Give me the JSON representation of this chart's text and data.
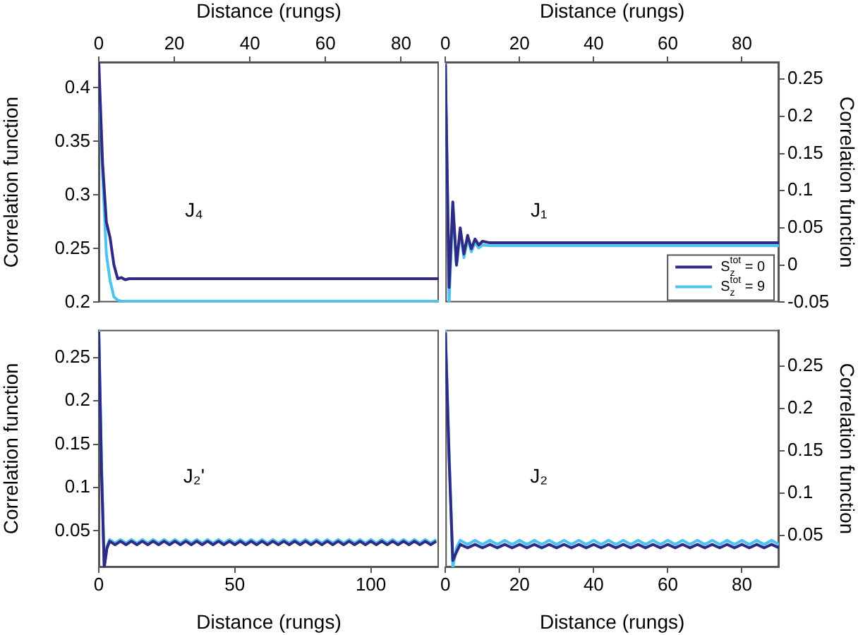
{
  "chart_data": [
    {
      "type": "line",
      "xlabel": "Distance (rungs)",
      "ylabel": "Correlation function",
      "xlim": [
        0,
        90
      ],
      "xticks": [
        0,
        20,
        40,
        60,
        80
      ],
      "ylim": [
        0.2,
        0.424
      ],
      "yticks": [
        0.2,
        0.25,
        0.3,
        0.35,
        0.4
      ],
      "annotations": [
        "J₄"
      ],
      "series": [
        {
          "color": "#2e2a85",
          "x": [
            0,
            1,
            2,
            3,
            4,
            5,
            6,
            7,
            8,
            10,
            30,
            50,
            70,
            90
          ],
          "values": [
            0.424,
            0.33,
            0.275,
            0.26,
            0.235,
            0.222,
            0.223,
            0.221,
            0.222,
            0.222,
            0.222,
            0.222,
            0.222,
            0.222
          ]
        },
        {
          "color": "#4fc3f0",
          "x": [
            0,
            1,
            2,
            3,
            4,
            5,
            6,
            7,
            8,
            10,
            30,
            50,
            70,
            90
          ],
          "values": [
            0.41,
            0.32,
            0.245,
            0.22,
            0.205,
            0.202,
            0.201,
            0.201,
            0.201,
            0.201,
            0.201,
            0.201,
            0.201,
            0.201
          ]
        }
      ]
    },
    {
      "type": "line",
      "xlabel": "Distance (rungs)",
      "y2label": "Correlation function",
      "xlim": [
        0,
        90
      ],
      "xticks": [
        0,
        20,
        40,
        60,
        80
      ],
      "y2lim": [
        -0.05,
        0.273
      ],
      "y2ticks": [
        -0.05,
        0,
        0.05,
        0.1,
        0.15,
        0.2,
        0.25
      ],
      "annotations": [
        "J₁"
      ],
      "legend": "bottom right",
      "series": [
        {
          "name": "S$_{z}$$^{tot}$ = 0",
          "color": "#2e2a85",
          "axis": "y2",
          "x": [
            0,
            1,
            2,
            3,
            4,
            5,
            6,
            7,
            8,
            9,
            10,
            12,
            15,
            30,
            50,
            70,
            90
          ],
          "values": [
            0.27,
            -0.03,
            0.085,
            0.0,
            0.05,
            0.015,
            0.04,
            0.022,
            0.035,
            0.027,
            0.032,
            0.03,
            0.03,
            0.03,
            0.03,
            0.03,
            0.03
          ]
        },
        {
          "name": "S$_{z}$$^{tot}$ = 9",
          "color": "#4fc3f0",
          "axis": "y2",
          "x": [
            0,
            1,
            2,
            3,
            4,
            5,
            6,
            7,
            8,
            9,
            10,
            12,
            15,
            30,
            50,
            70,
            90
          ],
          "values": [
            0.27,
            -0.05,
            0.075,
            0.0,
            0.045,
            0.01,
            0.035,
            0.018,
            0.03,
            0.023,
            0.027,
            0.026,
            0.026,
            0.026,
            0.026,
            0.026,
            0.026
          ]
        }
      ]
    },
    {
      "type": "line",
      "xlabel": "Distance (rungs)",
      "ylabel": "Correlation function",
      "xlim": [
        0,
        125
      ],
      "xticks": [
        0,
        50,
        100
      ],
      "ylim": [
        0.008,
        0.282
      ],
      "yticks": [
        0.05,
        0.1,
        0.15,
        0.2,
        0.25
      ],
      "annotations": [
        "J₂'"
      ],
      "series": [
        {
          "color": "#2e2a85",
          "x": [
            0,
            1,
            2,
            3,
            4,
            6,
            8,
            10,
            12,
            14,
            16,
            18,
            20,
            22,
            24,
            26,
            28,
            30,
            32,
            34,
            36,
            38,
            40,
            42,
            44,
            46,
            48,
            50,
            52,
            54,
            56,
            58,
            60,
            62,
            64,
            66,
            68,
            70,
            72,
            74,
            76,
            78,
            80,
            82,
            84,
            86,
            88,
            90,
            92,
            94,
            96,
            98,
            100,
            102,
            104,
            106,
            108,
            110,
            112,
            114,
            116,
            118,
            120,
            122,
            124
          ],
          "values": [
            0.28,
            0.12,
            0.008,
            0.03,
            0.038,
            0.034,
            0.038,
            0.034,
            0.038,
            0.034,
            0.038,
            0.034,
            0.038,
            0.034,
            0.038,
            0.034,
            0.038,
            0.034,
            0.038,
            0.034,
            0.038,
            0.034,
            0.038,
            0.034,
            0.038,
            0.034,
            0.038,
            0.034,
            0.038,
            0.034,
            0.038,
            0.034,
            0.038,
            0.034,
            0.038,
            0.034,
            0.038,
            0.034,
            0.038,
            0.034,
            0.038,
            0.034,
            0.038,
            0.034,
            0.038,
            0.034,
            0.038,
            0.034,
            0.038,
            0.034,
            0.038,
            0.034,
            0.038,
            0.034,
            0.038,
            0.034,
            0.038,
            0.034,
            0.038,
            0.034,
            0.038,
            0.034,
            0.038,
            0.034,
            0.038
          ]
        },
        {
          "color": "#4fc3f0",
          "x": [
            0,
            1,
            2,
            3,
            4,
            6,
            8,
            10,
            12,
            14,
            16,
            18,
            20,
            22,
            24,
            26,
            28,
            30,
            32,
            34,
            36,
            38,
            40,
            42,
            44,
            46,
            48,
            50,
            52,
            54,
            56,
            58,
            60,
            62,
            64,
            66,
            68,
            70,
            72,
            74,
            76,
            78,
            80,
            82,
            84,
            86,
            88,
            90,
            92,
            94,
            96,
            98,
            100,
            102,
            104,
            106,
            108,
            110,
            112,
            114,
            116,
            118,
            120,
            122,
            124
          ],
          "values": [
            0.282,
            0.13,
            0.008,
            0.032,
            0.04,
            0.036,
            0.04,
            0.036,
            0.04,
            0.036,
            0.04,
            0.036,
            0.04,
            0.036,
            0.04,
            0.036,
            0.04,
            0.036,
            0.04,
            0.036,
            0.04,
            0.036,
            0.04,
            0.036,
            0.04,
            0.036,
            0.04,
            0.036,
            0.04,
            0.036,
            0.04,
            0.036,
            0.04,
            0.036,
            0.04,
            0.036,
            0.04,
            0.036,
            0.04,
            0.036,
            0.04,
            0.036,
            0.04,
            0.036,
            0.04,
            0.036,
            0.04,
            0.036,
            0.04,
            0.036,
            0.04,
            0.036,
            0.04,
            0.036,
            0.04,
            0.036,
            0.04,
            0.036,
            0.04,
            0.036,
            0.04,
            0.036,
            0.04,
            0.036,
            0.04
          ]
        }
      ]
    },
    {
      "type": "line",
      "xlabel": "Distance (rungs)",
      "y2label": "Correlation function",
      "xlim": [
        0,
        90
      ],
      "xticks": [
        0,
        20,
        40,
        60,
        80
      ],
      "y2lim": [
        0.012,
        0.293
      ],
      "y2ticks": [
        0.05,
        0.1,
        0.15,
        0.2,
        0.25
      ],
      "annotations": [
        "J₂"
      ],
      "series": [
        {
          "color": "#2e2a85",
          "axis": "y2",
          "x": [
            0,
            1,
            2,
            3,
            4,
            6,
            8,
            10,
            12,
            14,
            16,
            18,
            20,
            22,
            24,
            26,
            28,
            30,
            32,
            34,
            36,
            38,
            40,
            42,
            44,
            46,
            48,
            50,
            52,
            54,
            56,
            58,
            60,
            62,
            64,
            66,
            68,
            70,
            72,
            74,
            76,
            78,
            80,
            82,
            84,
            86,
            88,
            90
          ],
          "values": [
            0.29,
            0.14,
            0.02,
            0.03,
            0.039,
            0.035,
            0.039,
            0.035,
            0.039,
            0.035,
            0.039,
            0.035,
            0.039,
            0.035,
            0.039,
            0.035,
            0.039,
            0.035,
            0.039,
            0.035,
            0.039,
            0.035,
            0.039,
            0.035,
            0.039,
            0.035,
            0.039,
            0.035,
            0.039,
            0.035,
            0.039,
            0.035,
            0.039,
            0.035,
            0.039,
            0.035,
            0.039,
            0.035,
            0.039,
            0.035,
            0.039,
            0.035,
            0.039,
            0.035,
            0.039,
            0.035,
            0.039,
            0.035
          ]
        },
        {
          "color": "#4fc3f0",
          "axis": "y2",
          "x": [
            0,
            1,
            2,
            3,
            4,
            6,
            8,
            10,
            12,
            14,
            16,
            18,
            20,
            22,
            24,
            26,
            28,
            30,
            32,
            34,
            36,
            38,
            40,
            42,
            44,
            46,
            48,
            50,
            52,
            54,
            56,
            58,
            60,
            62,
            64,
            66,
            68,
            70,
            72,
            74,
            76,
            78,
            80,
            82,
            84,
            86,
            88,
            90
          ],
          "values": [
            0.293,
            0.15,
            0.012,
            0.035,
            0.044,
            0.039,
            0.044,
            0.039,
            0.044,
            0.039,
            0.044,
            0.039,
            0.044,
            0.039,
            0.044,
            0.039,
            0.044,
            0.039,
            0.044,
            0.039,
            0.044,
            0.039,
            0.044,
            0.039,
            0.044,
            0.039,
            0.044,
            0.039,
            0.044,
            0.039,
            0.044,
            0.039,
            0.044,
            0.039,
            0.044,
            0.039,
            0.044,
            0.039,
            0.044,
            0.039,
            0.044,
            0.039,
            0.044,
            0.039,
            0.044,
            0.039,
            0.044,
            0.039
          ]
        }
      ]
    }
  ]
}
